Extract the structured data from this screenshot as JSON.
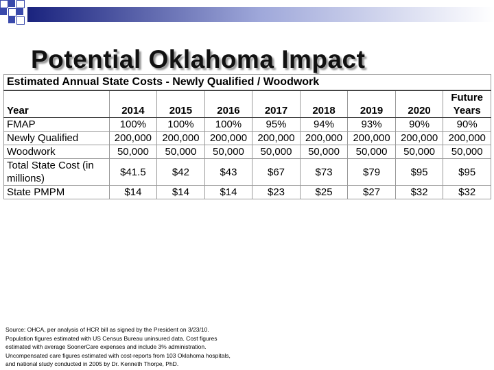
{
  "header": {
    "title": "Potential Oklahoma Impact"
  },
  "table": {
    "caption": "Estimated Annual State Costs - Newly Qualified / Woodwork",
    "header": [
      "Year",
      "2014",
      "2015",
      "2016",
      "2017",
      "2018",
      "2019",
      "2020",
      "Future Years"
    ],
    "rows": [
      [
        "FMAP",
        "100%",
        "100%",
        "100%",
        "95%",
        "94%",
        "93%",
        "90%",
        "90%"
      ],
      [
        "Newly Qualified",
        "200,000",
        "200,000",
        "200,000",
        "200,000",
        "200,000",
        "200,000",
        "200,000",
        "200,000"
      ],
      [
        "Woodwork",
        "50,000",
        "50,000",
        "50,000",
        "50,000",
        "50,000",
        "50,000",
        "50,000",
        "50,000"
      ],
      [
        "Total State Cost (in millions)",
        "$41.5",
        "$42",
        "$43",
        "$67",
        "$73",
        "$79",
        "$95",
        "$95"
      ],
      [
        "State PMPM",
        "$14",
        "$14",
        "$14",
        "$23",
        "$25",
        "$27",
        "$32",
        "$32"
      ]
    ]
  },
  "source": [
    "Source:  OHCA, per analysis of HCR bill as signed by the President on 3/23/10.",
    "Population figures estimated with US Census Bureau uninsured data.  Cost figures",
    "estimated with average SoonerCare expenses and include 3% administration.",
    "Uncompensated care figures estimated with cost-reports from 103 Oklahoma hospitals,",
    "and national study conducted in 2005 by Dr. Kenneth Thorpe, PhD."
  ]
}
